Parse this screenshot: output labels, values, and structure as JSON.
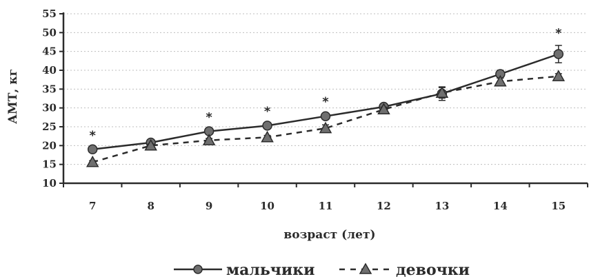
{
  "chart_data": {
    "type": "line",
    "title": "",
    "xlabel": "возраст (лет)",
    "ylabel": "АМТ, кг",
    "x": [
      7,
      8,
      9,
      10,
      11,
      12,
      13,
      14,
      15
    ],
    "ylim": [
      10,
      55
    ],
    "yticks": [
      10,
      15,
      20,
      25,
      30,
      35,
      40,
      45,
      50,
      55
    ],
    "grid": true,
    "legend_position": "bottom-center",
    "significance_marker": "*",
    "significant_x": [
      7,
      9,
      10,
      11,
      15
    ],
    "series": [
      {
        "name": "мальчики",
        "marker": "circle",
        "line": "solid",
        "values": [
          19.0,
          20.8,
          23.8,
          25.3,
          27.8,
          30.3,
          33.8,
          39.0,
          44.3
        ],
        "errors": [
          0.4,
          0.4,
          0.5,
          0.5,
          0.6,
          0.5,
          1.8,
          1.0,
          2.3
        ]
      },
      {
        "name": "девочки",
        "marker": "triangle",
        "line": "dashed",
        "values": [
          15.6,
          20.0,
          21.4,
          22.2,
          24.6,
          29.6,
          34.0,
          37.0,
          38.4
        ],
        "errors": [
          0.4,
          0.4,
          0.5,
          0.5,
          0.9,
          0.6,
          1.4,
          0.9,
          0.7
        ]
      }
    ]
  },
  "colors": {
    "ink": "#2b2b2b",
    "grid": "#bdbdbd",
    "marker_fill": "#6f6f6f"
  }
}
